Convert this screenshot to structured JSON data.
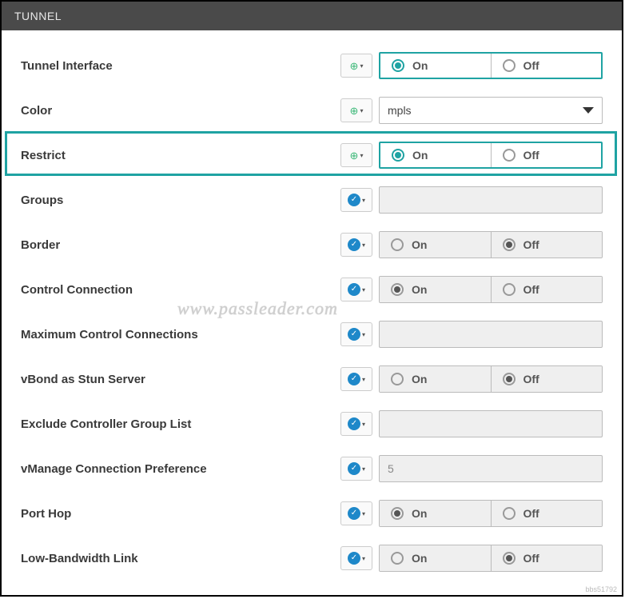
{
  "panel": {
    "title": "TUNNEL"
  },
  "watermark": "www.passleader.com",
  "corner_id": "bbs51792",
  "labels": {
    "on": "On",
    "off": "Off"
  },
  "icons": {
    "globe": "globe-icon",
    "check": "check-icon",
    "caret": "▾"
  },
  "colors": {
    "accent_teal": "#1fa3a3",
    "accent_blue": "#1e88c9",
    "accent_green": "#3cb878",
    "header_bg": "#4a4a4a",
    "disabled_bg": "#efefef"
  },
  "rows": [
    {
      "key": "tunnel_interface",
      "label": "Tunnel Interface",
      "mode": "global",
      "control": "toggle",
      "style": "teal",
      "selected": "on"
    },
    {
      "key": "color",
      "label": "Color",
      "mode": "global",
      "control": "select",
      "value": "mpls"
    },
    {
      "key": "restrict",
      "label": "Restrict",
      "mode": "global",
      "control": "toggle",
      "style": "teal",
      "selected": "on",
      "highlight": true
    },
    {
      "key": "groups",
      "label": "Groups",
      "mode": "default",
      "control": "text",
      "value": "",
      "disabled": true
    },
    {
      "key": "border",
      "label": "Border",
      "mode": "default",
      "control": "toggle",
      "style": "gray",
      "selected": "off"
    },
    {
      "key": "control_connection",
      "label": "Control Connection",
      "mode": "default",
      "control": "toggle",
      "style": "gray",
      "selected": "on"
    },
    {
      "key": "max_control_connections",
      "label": "Maximum Control Connections",
      "mode": "default",
      "control": "text",
      "value": "",
      "disabled": true
    },
    {
      "key": "vbond_stun",
      "label": "vBond as Stun Server",
      "mode": "default",
      "control": "toggle",
      "style": "gray",
      "selected": "off"
    },
    {
      "key": "exclude_ctrl_group",
      "label": "Exclude Controller Group List",
      "mode": "default",
      "control": "text",
      "value": "",
      "disabled": true
    },
    {
      "key": "vmanage_pref",
      "label": "vManage Connection Preference",
      "mode": "default",
      "control": "text",
      "value": "5",
      "disabled": true
    },
    {
      "key": "port_hop",
      "label": "Port Hop",
      "mode": "default",
      "control": "toggle",
      "style": "gray",
      "selected": "on"
    },
    {
      "key": "low_bandwidth",
      "label": "Low-Bandwidth Link",
      "mode": "default",
      "control": "toggle",
      "style": "gray",
      "selected": "off"
    }
  ]
}
